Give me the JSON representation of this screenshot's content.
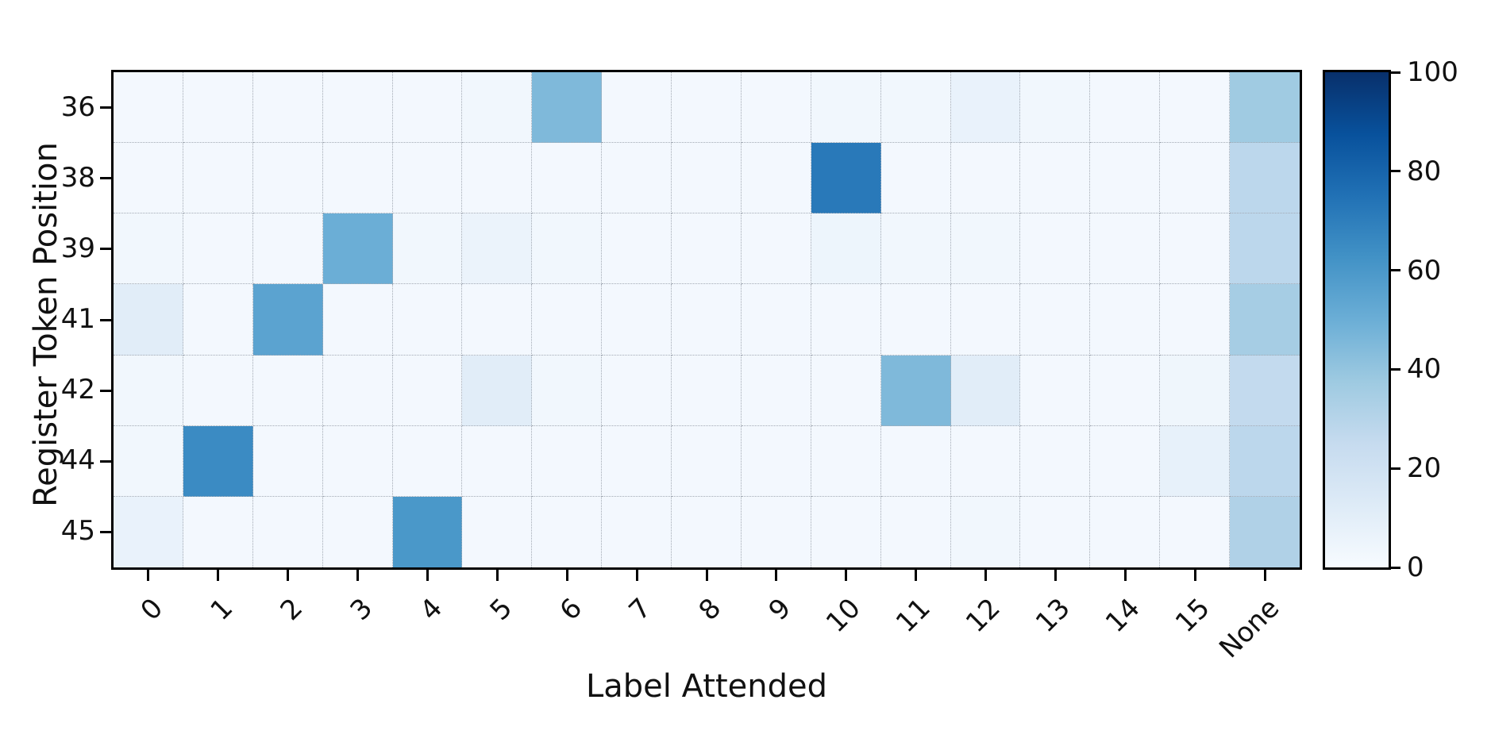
{
  "chart_data": {
    "type": "heatmap",
    "xlabel": "Label Attended",
    "ylabel": "Register Token Position",
    "x_categories": [
      "0",
      "1",
      "2",
      "3",
      "4",
      "5",
      "6",
      "7",
      "8",
      "9",
      "10",
      "11",
      "12",
      "13",
      "14",
      "15",
      "None"
    ],
    "y_categories": [
      "36",
      "38",
      "39",
      "41",
      "42",
      "44",
      "45"
    ],
    "values": [
      [
        2,
        2,
        2,
        2,
        2,
        3,
        45,
        2,
        2,
        2,
        3,
        3,
        7,
        3,
        2,
        2,
        37
      ],
      [
        2,
        2,
        2,
        2,
        2,
        2,
        2,
        2,
        2,
        2,
        72,
        2,
        2,
        2,
        2,
        2,
        28
      ],
      [
        3,
        2,
        2,
        50,
        3,
        6,
        3,
        2,
        2,
        2,
        5,
        3,
        3,
        2,
        2,
        2,
        28
      ],
      [
        11,
        2,
        55,
        2,
        2,
        2,
        2,
        2,
        2,
        2,
        2,
        2,
        2,
        2,
        2,
        2,
        35
      ],
      [
        3,
        2,
        2,
        2,
        2,
        11,
        3,
        2,
        2,
        2,
        2,
        45,
        11,
        2,
        2,
        4,
        26
      ],
      [
        3,
        65,
        2,
        2,
        2,
        2,
        2,
        2,
        2,
        2,
        2,
        2,
        2,
        2,
        2,
        8,
        28
      ],
      [
        7,
        2,
        2,
        2,
        60,
        2,
        2,
        2,
        2,
        2,
        2,
        2,
        3,
        2,
        2,
        2,
        32
      ]
    ],
    "vmin": 0,
    "vmax": 100,
    "grid": "dotted",
    "legend_position": "right-colorbar",
    "colorbar": {
      "ticks": [
        0,
        20,
        40,
        60,
        80,
        100
      ],
      "orientation": "vertical"
    },
    "colormap": {
      "name": "Blues",
      "anchors": [
        "#f7fbff",
        "#deebf7",
        "#c6dbef",
        "#9ecae1",
        "#6baed6",
        "#4292c6",
        "#2171b5",
        "#08519c",
        "#08306b"
      ]
    },
    "axis_color": "#000000",
    "gridline_color": "#a3aab4"
  }
}
